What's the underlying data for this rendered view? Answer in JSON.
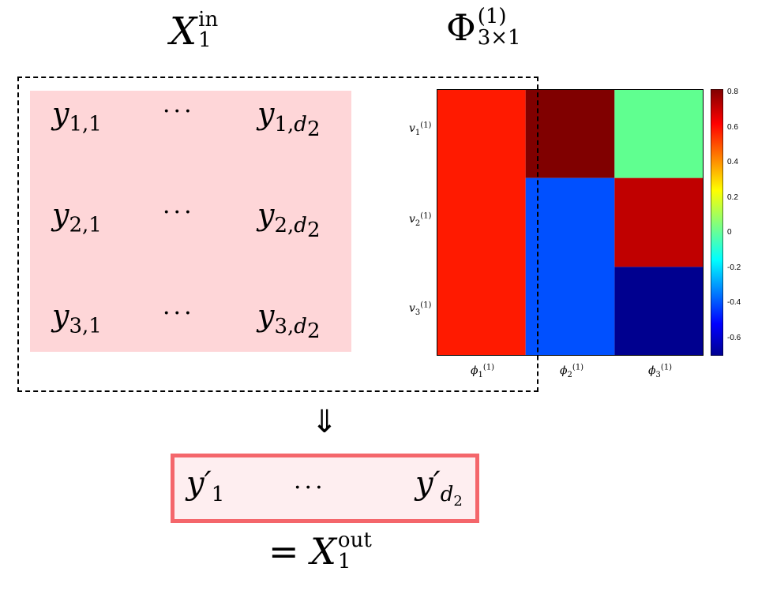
{
  "input_title": {
    "symbol": "X",
    "superscript": "in",
    "subscript": "1"
  },
  "phi_title": {
    "symbol": "Φ",
    "superscript": "(1)",
    "subscript": "3×1"
  },
  "matrix": {
    "rows": [
      {
        "first": "y",
        "first_sub": "1,1",
        "dots": "···",
        "last": "y",
        "last_sub": "1,",
        "last_sub_var": "d",
        "last_sub_idx": "2"
      },
      {
        "first": "y",
        "first_sub": "2,1",
        "dots": "···",
        "last": "y",
        "last_sub": "2,",
        "last_sub_var": "d",
        "last_sub_idx": "2"
      },
      {
        "first": "y",
        "first_sub": "3,1",
        "dots": "···",
        "last": "y",
        "last_sub": "3,",
        "last_sub_var": "d",
        "last_sub_idx": "2"
      }
    ]
  },
  "heatmap": {
    "row_labels": [
      {
        "sym": "v",
        "sub": "1",
        "sup": "(1)"
      },
      {
        "sym": "v",
        "sub": "2",
        "sup": "(1)"
      },
      {
        "sym": "v",
        "sub": "3",
        "sup": "(1)"
      }
    ],
    "col_labels": [
      {
        "sym": "ϕ",
        "sub": "1",
        "sup": "(1)"
      },
      {
        "sym": "ϕ",
        "sub": "2",
        "sup": "(1)"
      },
      {
        "sym": "ϕ",
        "sub": "3",
        "sup": "(1)"
      }
    ],
    "colorbar_ticks": [
      "0.8",
      "0.6",
      "0.4",
      "0.2",
      "0",
      "-0.2",
      "-0.4",
      "-0.6"
    ],
    "colorbar_range": [
      -0.7,
      0.82
    ],
    "cells": [
      {
        "col": 0,
        "row_start": 0,
        "row_span": 3,
        "value": 0.66,
        "color": "#ff1a00"
      },
      {
        "col": 1,
        "row_start": 0,
        "row_span": 1,
        "value": 0.82,
        "color": "#800000"
      },
      {
        "col": 1,
        "row_start": 1,
        "row_span": 2,
        "value": -0.38,
        "color": "#0050ff"
      },
      {
        "col": 2,
        "row_start": 0,
        "row_span": 1,
        "value": 0.05,
        "color": "#60ff90"
      },
      {
        "col": 2,
        "row_start": 1,
        "row_span": 1,
        "value": 0.76,
        "color": "#c00000"
      },
      {
        "col": 2,
        "row_start": 2,
        "row_span": 1,
        "value": -0.7,
        "color": "#00008f"
      }
    ]
  },
  "arrow": "⇓",
  "output": {
    "first": "y′",
    "first_sub": "1",
    "dots": "···",
    "last": "y′",
    "last_sub_var": "d",
    "last_sub_idx": "2"
  },
  "result": {
    "prefix": "= ",
    "symbol": "X",
    "superscript": "out",
    "subscript": "1"
  },
  "colors": {
    "pink_fill": "#fed6d8",
    "out_border": "#f4666b",
    "out_fill": "#feeef0"
  }
}
